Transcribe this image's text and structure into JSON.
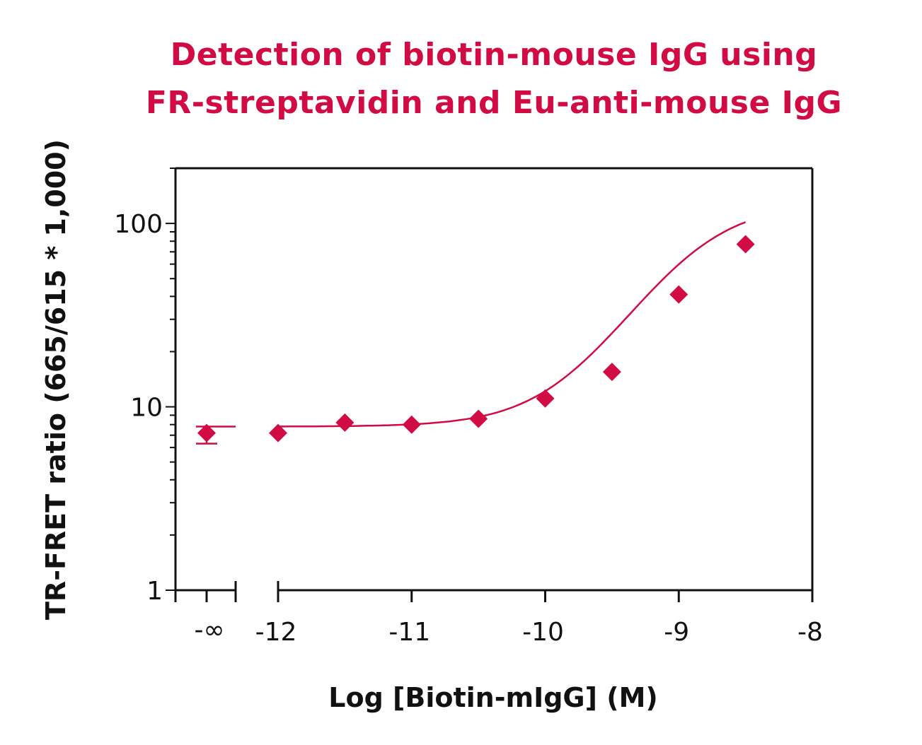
{
  "colors": {
    "accent": "#d10b44",
    "axis": "#111111",
    "background": "#ffffff"
  },
  "chart_data": {
    "type": "scatter",
    "title_lines": [
      "Detection of biotin-mouse IgG using",
      "FR-streptavidin and Eu-anti-mouse IgG"
    ],
    "xlabel": "Log [Biotin-mIgG] (M)",
    "ylabel": "TR-FRET ratio (665/615 * 1,000)",
    "y_scale": "log",
    "ylim": [
      1,
      200
    ],
    "xlim": [
      -12,
      -8
    ],
    "x_ticks": [
      -12,
      -11,
      -10,
      -9,
      -8
    ],
    "x_tick_labels": [
      "-12",
      "-11",
      "-10",
      "-9",
      "-8"
    ],
    "y_ticks": [
      1,
      10,
      100
    ],
    "y_tick_labels": [
      "1",
      "10",
      "100"
    ],
    "zero_label": "-∞",
    "zero_point": {
      "x": "-∞",
      "y": 7.2,
      "y_error_low": 6.3,
      "y_error_high": 7.7
    },
    "series": [
      {
        "marker": "diamond",
        "x": [
          -12.0,
          -11.5,
          -11.0,
          -10.5,
          -10.0,
          -9.5,
          -9.0,
          -8.5
        ],
        "y": [
          7.2,
          8.2,
          8.0,
          8.6,
          11.1,
          15.5,
          41.0,
          77.0
        ]
      }
    ],
    "fit": {
      "model": "4-parameter logistic",
      "bottom": 7.8,
      "top": 130,
      "log_ec50": -8.9,
      "hill": 1.3
    },
    "grid": false,
    "legend": "none"
  }
}
